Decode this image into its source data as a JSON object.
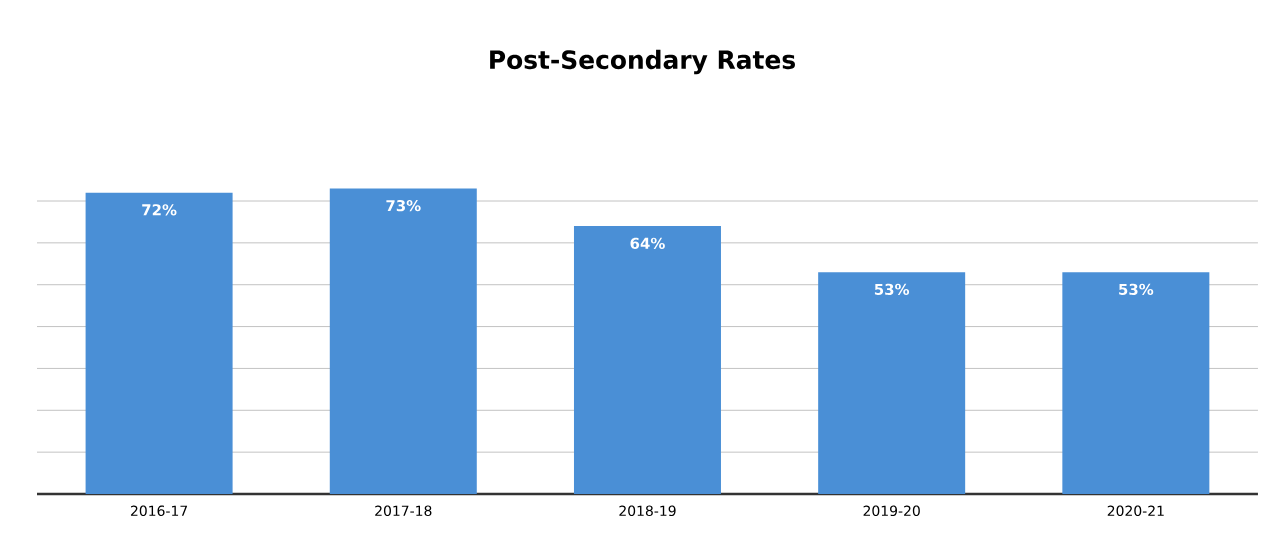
{
  "chart_data": {
    "type": "bar",
    "title": "Post-Secondary Rates",
    "categories": [
      "2016-17",
      "2017-18",
      "2018-19",
      "2019-20",
      "2020-21"
    ],
    "values": [
      72,
      73,
      64,
      53,
      53
    ],
    "value_labels": [
      "72%",
      "73%",
      "64%",
      "53%",
      "53%"
    ],
    "color": "#4a8fd6",
    "grid": "y",
    "tick_labels": "x"
  }
}
